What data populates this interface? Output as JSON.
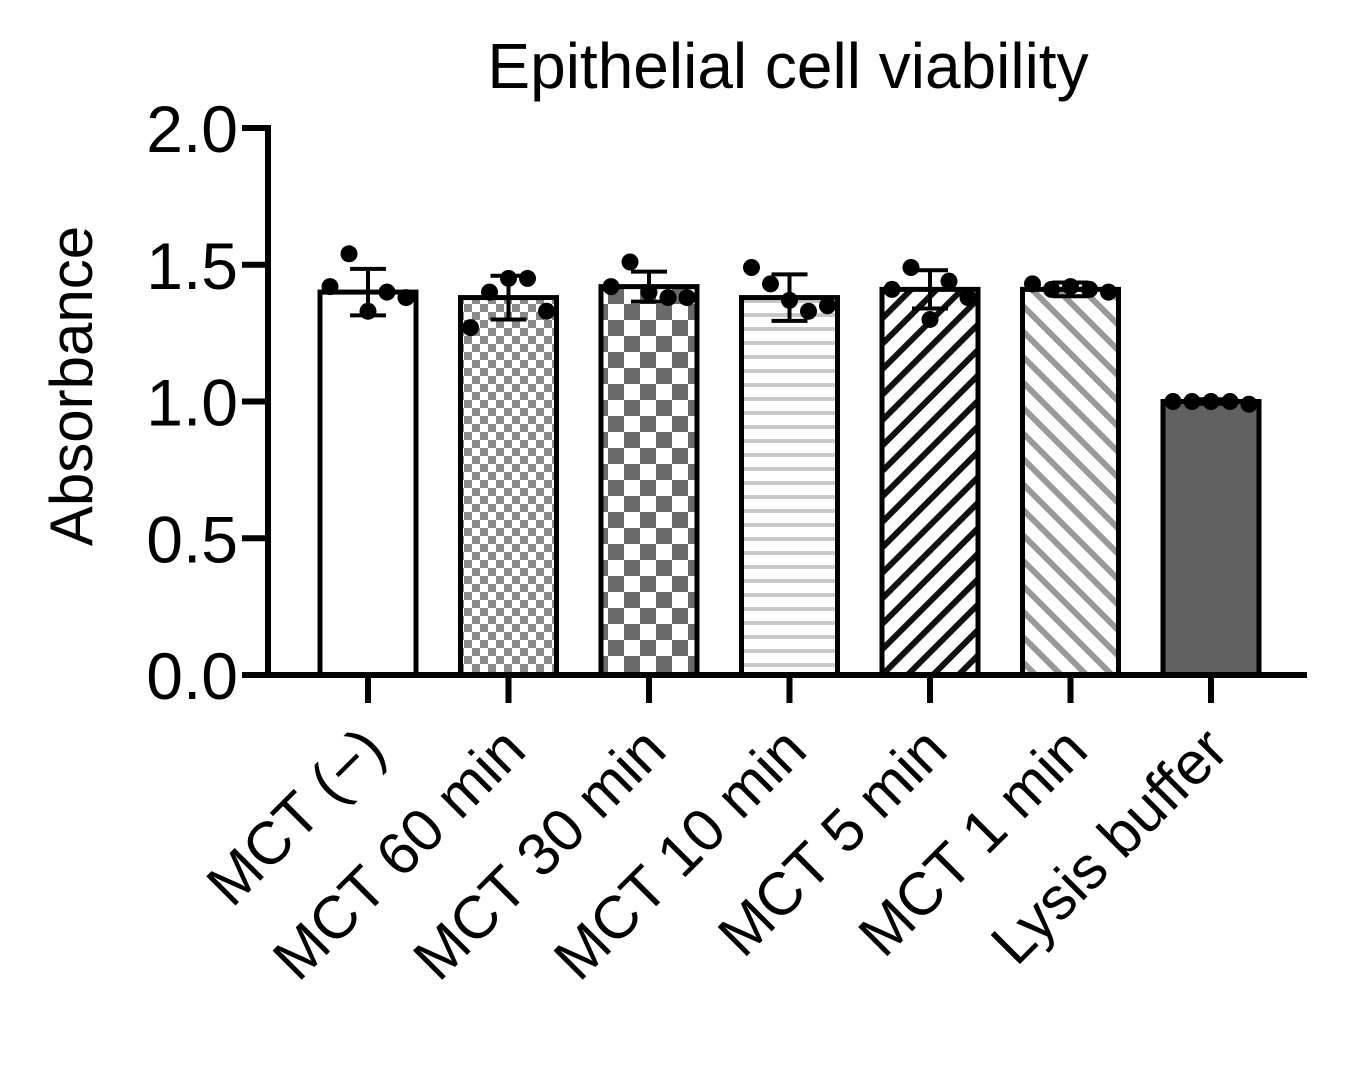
{
  "chart_data": {
    "type": "bar",
    "title": "Epithelial cell viability",
    "xlabel": "",
    "ylabel": "Absorbance",
    "ylim": [
      0,
      2.0
    ],
    "yticks": [
      0.0,
      0.5,
      1.0,
      1.5,
      2.0
    ],
    "ytick_labels": [
      "0.0",
      "0.5",
      "1.0",
      "1.5",
      "2.0"
    ],
    "grid": false,
    "categories": [
      "MCT (−)",
      "MCT 60 min",
      "MCT 30 min",
      "MCT 10 min",
      "MCT 5 min",
      "MCT 1 min",
      "Lysis buffer"
    ],
    "values": [
      1.4,
      1.38,
      1.42,
      1.38,
      1.41,
      1.41,
      1.0
    ],
    "error": [
      0.085,
      0.08,
      0.055,
      0.085,
      0.07,
      0.025,
      0.008
    ],
    "patterns": [
      "none",
      "fine-check",
      "coarse-check",
      "horizontal-lines",
      "diagonal-dark",
      "diagonal-light",
      "solid-dark"
    ],
    "points": [
      [
        1.42,
        1.54,
        1.33,
        1.4,
        1.38
      ],
      [
        1.27,
        1.4,
        1.45,
        1.45,
        1.33
      ],
      [
        1.42,
        1.51,
        1.4,
        1.38,
        1.38
      ],
      [
        1.49,
        1.43,
        1.37,
        1.33,
        1.35
      ],
      [
        1.41,
        1.49,
        1.3,
        1.44,
        1.38
      ],
      [
        1.43,
        1.41,
        1.42,
        1.41,
        1.4
      ],
      [
        1.0,
        1.0,
        1.0,
        1.0,
        0.99
      ]
    ]
  },
  "colors": {
    "axis": "#000000",
    "dark_fill": "#606060",
    "mid_fill": "#7a7a7a",
    "light_line": "#c8c8c8",
    "light_diag": "#999999"
  }
}
